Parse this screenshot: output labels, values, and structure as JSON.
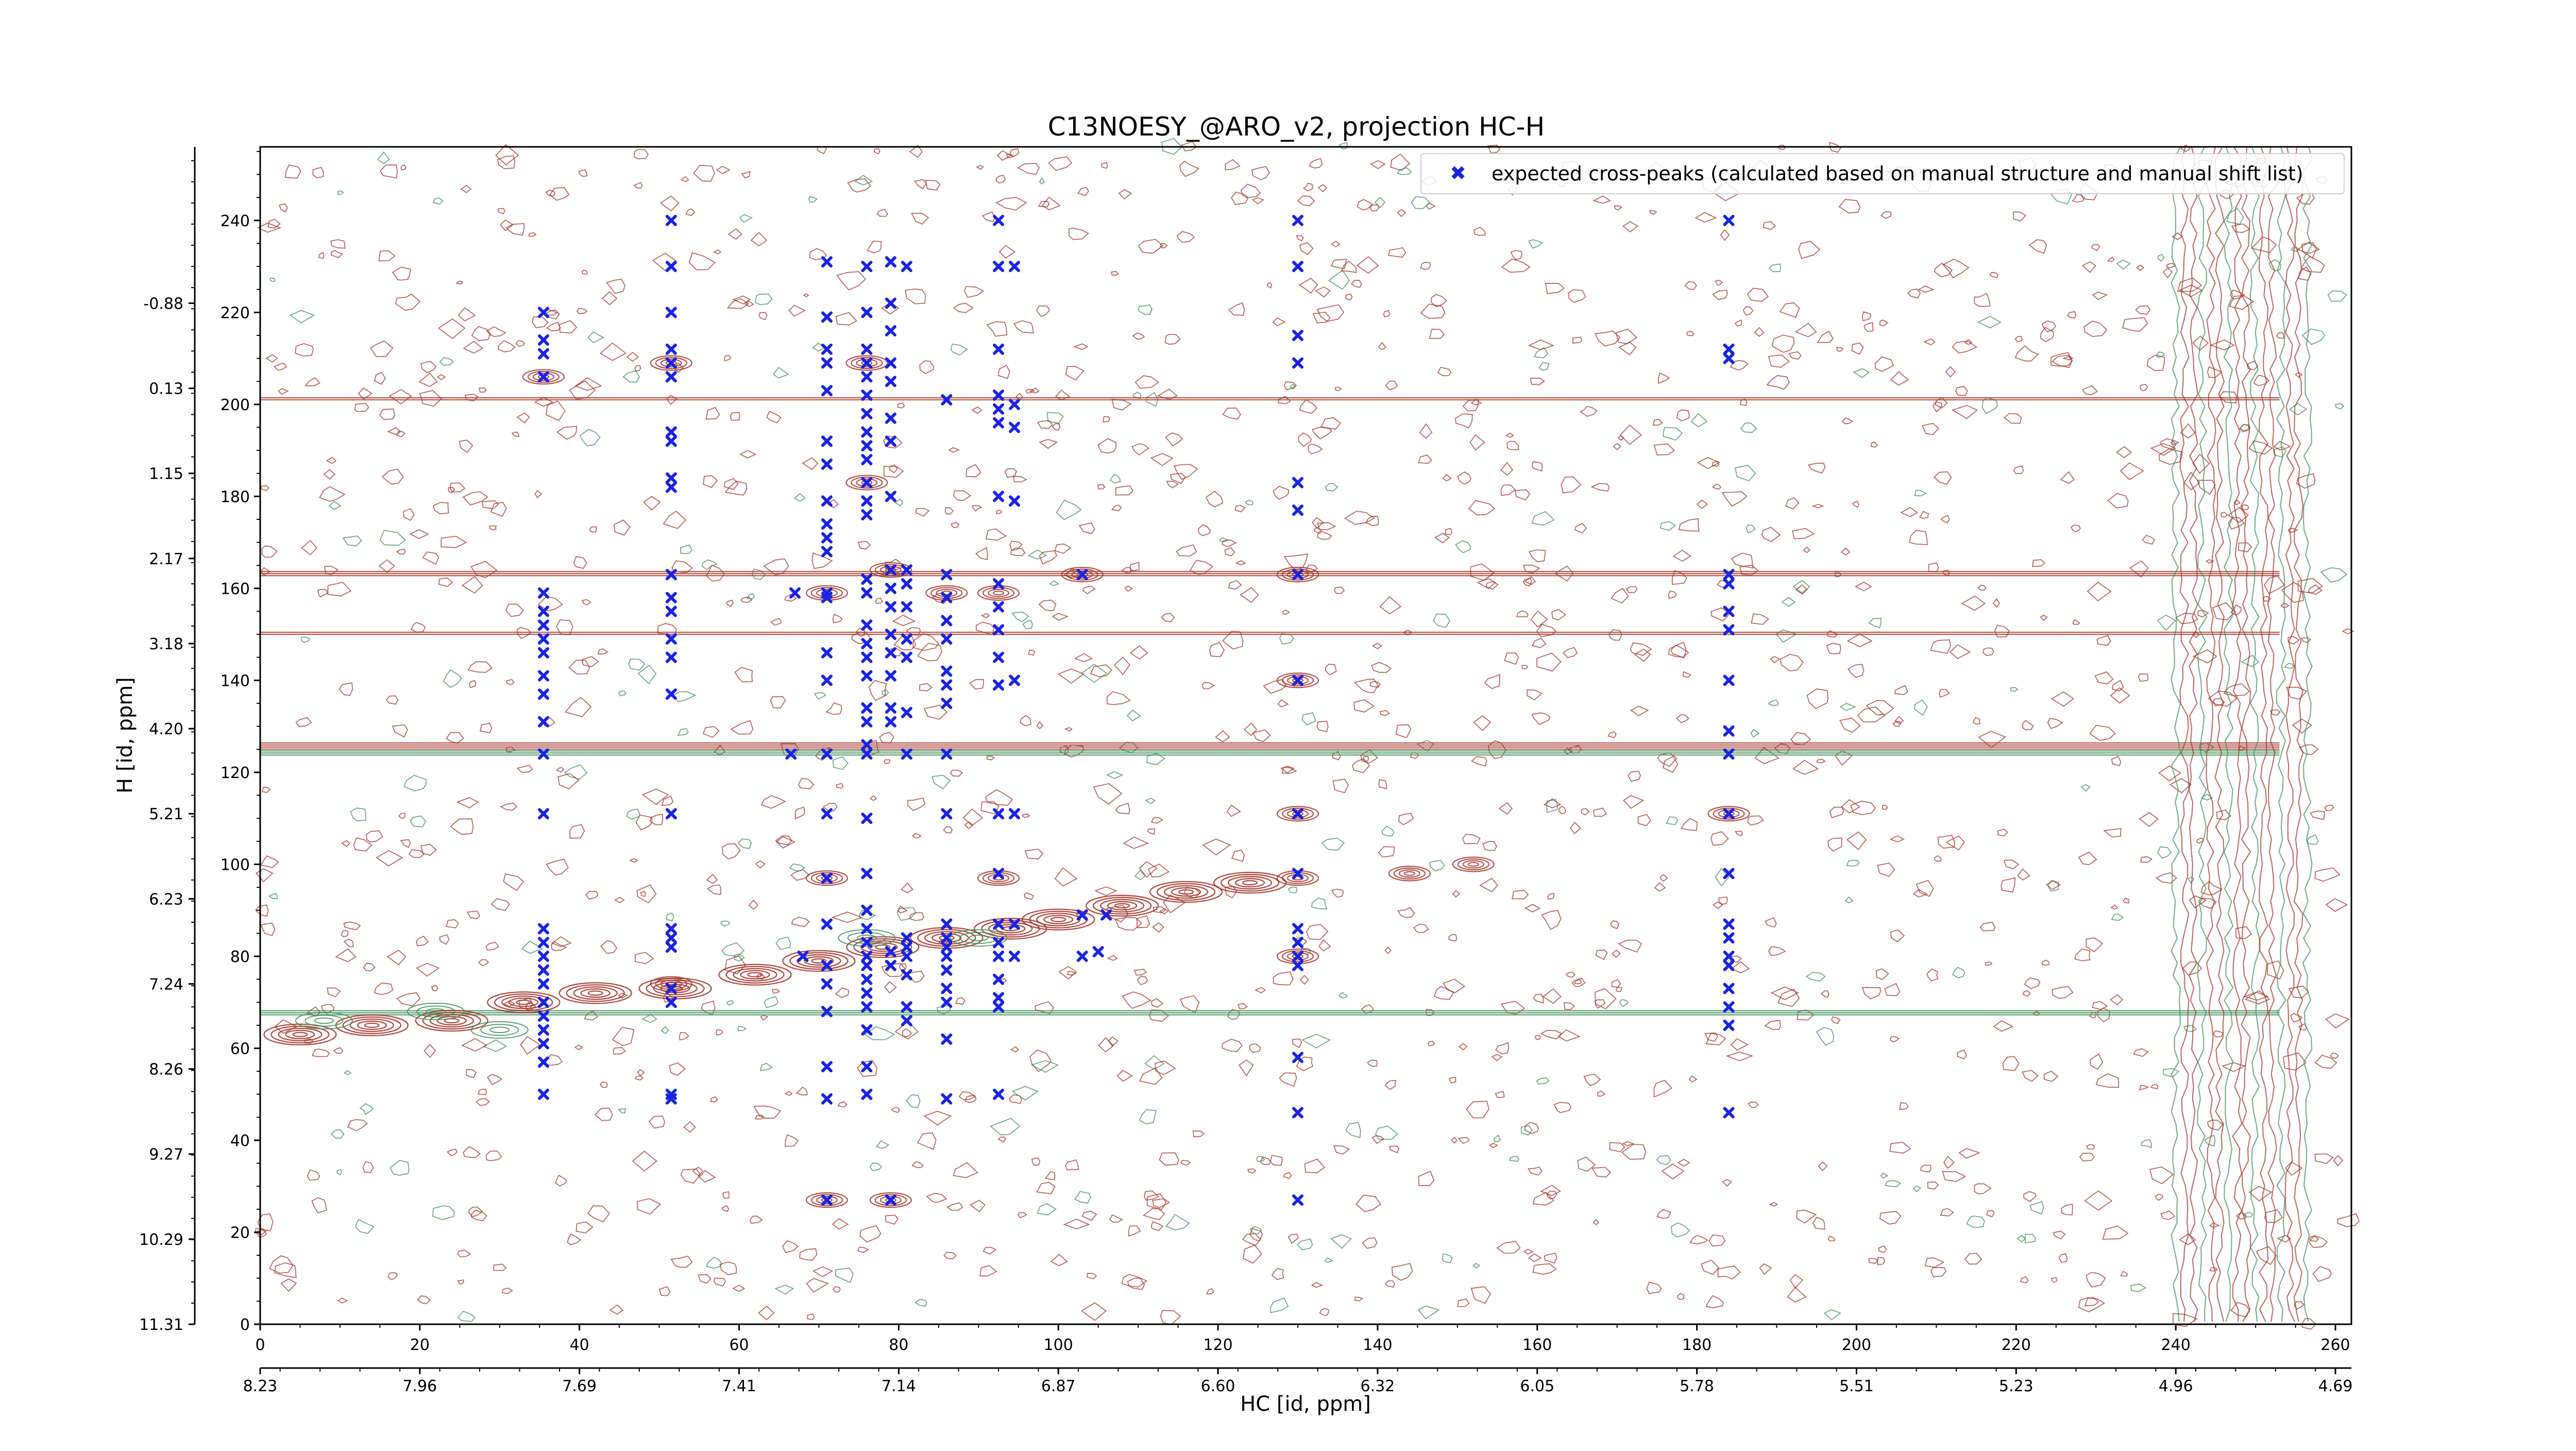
{
  "chart_data": {
    "type": "scatter",
    "title": "C13NOESY_@ARO_v2, projection HC-H",
    "xlabel": "HC [id, ppm]",
    "ylabel": "H [id, ppm]",
    "xlim": [
      0,
      262
    ],
    "ylim": [
      0,
      256
    ],
    "grid": false,
    "legend_position": "top-right",
    "x_ticks": [
      0,
      20,
      40,
      60,
      80,
      100,
      120,
      140,
      160,
      180,
      200,
      220,
      240,
      260
    ],
    "y_ticks": [
      0,
      20,
      40,
      60,
      80,
      100,
      120,
      140,
      160,
      180,
      200,
      220,
      240
    ],
    "x_ppm_ticks": [
      {
        "pos": 0,
        "label": "8.23"
      },
      {
        "pos": 20,
        "label": "7.96"
      },
      {
        "pos": 40,
        "label": "7.69"
      },
      {
        "pos": 60,
        "label": "7.41"
      },
      {
        "pos": 80,
        "label": "7.14"
      },
      {
        "pos": 100,
        "label": "6.87"
      },
      {
        "pos": 120,
        "label": "6.60"
      },
      {
        "pos": 140,
        "label": "6.32"
      },
      {
        "pos": 160,
        "label": "6.05"
      },
      {
        "pos": 180,
        "label": "5.78"
      },
      {
        "pos": 200,
        "label": "5.51"
      },
      {
        "pos": 220,
        "label": "5.23"
      },
      {
        "pos": 240,
        "label": "4.96"
      },
      {
        "pos": 260,
        "label": "4.69"
      }
    ],
    "y_ppm_ticks": [
      {
        "pos": 0,
        "label": "11.31"
      },
      {
        "pos": 18.5,
        "label": "10.29"
      },
      {
        "pos": 37,
        "label": "9.27"
      },
      {
        "pos": 55.5,
        "label": "8.26"
      },
      {
        "pos": 74,
        "label": "7.24"
      },
      {
        "pos": 92.5,
        "label": "6.23"
      },
      {
        "pos": 111,
        "label": "5.21"
      },
      {
        "pos": 129.5,
        "label": "4.20"
      },
      {
        "pos": 148,
        "label": "3.18"
      },
      {
        "pos": 166.5,
        "label": "2.17"
      },
      {
        "pos": 185,
        "label": "1.15"
      },
      {
        "pos": 203.5,
        "label": "0.13"
      },
      {
        "pos": 222,
        "label": "-0.88"
      }
    ],
    "colors": {
      "positive": "#a0352a",
      "negative": "#3f8f58",
      "peaks": "#1a24e0"
    },
    "series": [
      {
        "name": "expected cross-peaks (calculated based on manual structure and manual shift list)",
        "points": [
          [
            35.5,
            220
          ],
          [
            35.5,
            214
          ],
          [
            35.5,
            211
          ],
          [
            35.5,
            206
          ],
          [
            35.5,
            159
          ],
          [
            35.5,
            155
          ],
          [
            35.5,
            152
          ],
          [
            35.5,
            149
          ],
          [
            35.5,
            146
          ],
          [
            35.5,
            141
          ],
          [
            35.5,
            137
          ],
          [
            35.5,
            131
          ],
          [
            35.5,
            124
          ],
          [
            35.5,
            111
          ],
          [
            35.5,
            86
          ],
          [
            35.5,
            83
          ],
          [
            35.5,
            80
          ],
          [
            35.5,
            77
          ],
          [
            35.5,
            74
          ],
          [
            35.5,
            70
          ],
          [
            35.5,
            67
          ],
          [
            35.5,
            64
          ],
          [
            35.5,
            61
          ],
          [
            35.5,
            57
          ],
          [
            35.5,
            50
          ],
          [
            51.5,
            240
          ],
          [
            51.5,
            230
          ],
          [
            51.5,
            220
          ],
          [
            51.5,
            212
          ],
          [
            51.5,
            209
          ],
          [
            51.5,
            206
          ],
          [
            51.5,
            194
          ],
          [
            51.5,
            192
          ],
          [
            51.5,
            184
          ],
          [
            51.5,
            182
          ],
          [
            51.5,
            163
          ],
          [
            51.5,
            158
          ],
          [
            51.5,
            155
          ],
          [
            51.5,
            149
          ],
          [
            51.5,
            145
          ],
          [
            51.5,
            137
          ],
          [
            51.5,
            111
          ],
          [
            51.5,
            86
          ],
          [
            51.5,
            84
          ],
          [
            51.5,
            82
          ],
          [
            51.5,
            73
          ],
          [
            51.5,
            70
          ],
          [
            51.5,
            50
          ],
          [
            51.5,
            49
          ],
          [
            71,
            231
          ],
          [
            71,
            219
          ],
          [
            71,
            212
          ],
          [
            71,
            209
          ],
          [
            71,
            203
          ],
          [
            71,
            192
          ],
          [
            71,
            187
          ],
          [
            71,
            179
          ],
          [
            71,
            174
          ],
          [
            71,
            171
          ],
          [
            71,
            168
          ],
          [
            71,
            159
          ],
          [
            71,
            158
          ],
          [
            71,
            146
          ],
          [
            71,
            140
          ],
          [
            71,
            124
          ],
          [
            71,
            111
          ],
          [
            71,
            97
          ],
          [
            71,
            87
          ],
          [
            71,
            78
          ],
          [
            71,
            74
          ],
          [
            71,
            68
          ],
          [
            71,
            56
          ],
          [
            71,
            49
          ],
          [
            71,
            27
          ],
          [
            67,
            159
          ],
          [
            66.5,
            124
          ],
          [
            68,
            80
          ],
          [
            76,
            230
          ],
          [
            76,
            220
          ],
          [
            76,
            212
          ],
          [
            76,
            209
          ],
          [
            76,
            206
          ],
          [
            76,
            202
          ],
          [
            76,
            198
          ],
          [
            76,
            194
          ],
          [
            76,
            191
          ],
          [
            76,
            188
          ],
          [
            76,
            183
          ],
          [
            76,
            179
          ],
          [
            76,
            176
          ],
          [
            76,
            162
          ],
          [
            76,
            159
          ],
          [
            76,
            152
          ],
          [
            76,
            148
          ],
          [
            76,
            145
          ],
          [
            76,
            141
          ],
          [
            76,
            134
          ],
          [
            76,
            131
          ],
          [
            76,
            126
          ],
          [
            76,
            124
          ],
          [
            76,
            110
          ],
          [
            76,
            98
          ],
          [
            76,
            90
          ],
          [
            76,
            86
          ],
          [
            76,
            83
          ],
          [
            76,
            80
          ],
          [
            76,
            78
          ],
          [
            76,
            75
          ],
          [
            76,
            72
          ],
          [
            76,
            69
          ],
          [
            76,
            64
          ],
          [
            76,
            56
          ],
          [
            76,
            50
          ],
          [
            79,
            231
          ],
          [
            79,
            222
          ],
          [
            79,
            216
          ],
          [
            79,
            209
          ],
          [
            79,
            205
          ],
          [
            79,
            197
          ],
          [
            79,
            192
          ],
          [
            79,
            180
          ],
          [
            79,
            164
          ],
          [
            79,
            160
          ],
          [
            79,
            156
          ],
          [
            79,
            150
          ],
          [
            79,
            146
          ],
          [
            79,
            141
          ],
          [
            79,
            134
          ],
          [
            79,
            131
          ],
          [
            79,
            81
          ],
          [
            79,
            78
          ],
          [
            79,
            27
          ],
          [
            81,
            230
          ],
          [
            81,
            164
          ],
          [
            81,
            161
          ],
          [
            81,
            156
          ],
          [
            81,
            149
          ],
          [
            81,
            145
          ],
          [
            81,
            133
          ],
          [
            81,
            124
          ],
          [
            81,
            84
          ],
          [
            81,
            82
          ],
          [
            81,
            80
          ],
          [
            81,
            76
          ],
          [
            81,
            69
          ],
          [
            81,
            66
          ],
          [
            86,
            201
          ],
          [
            86,
            163
          ],
          [
            86,
            158
          ],
          [
            86,
            153
          ],
          [
            86,
            149
          ],
          [
            86,
            142
          ],
          [
            86,
            139
          ],
          [
            86,
            135
          ],
          [
            86,
            124
          ],
          [
            86,
            111
          ],
          [
            86,
            87
          ],
          [
            86,
            84
          ],
          [
            86,
            82
          ],
          [
            86,
            80
          ],
          [
            86,
            77
          ],
          [
            86,
            73
          ],
          [
            86,
            70
          ],
          [
            86,
            62
          ],
          [
            86,
            49
          ],
          [
            92.5,
            240
          ],
          [
            92.5,
            230
          ],
          [
            92.5,
            212
          ],
          [
            92.5,
            202
          ],
          [
            92.5,
            199
          ],
          [
            92.5,
            196
          ],
          [
            92.5,
            180
          ],
          [
            92.5,
            161
          ],
          [
            92.5,
            156
          ],
          [
            92.5,
            151
          ],
          [
            92.5,
            145
          ],
          [
            92.5,
            139
          ],
          [
            92.5,
            111
          ],
          [
            92.5,
            98
          ],
          [
            92.5,
            87
          ],
          [
            92.5,
            83
          ],
          [
            92.5,
            80
          ],
          [
            92.5,
            75
          ],
          [
            92.5,
            71
          ],
          [
            92.5,
            69
          ],
          [
            92.5,
            50
          ],
          [
            94.5,
            230
          ],
          [
            94.5,
            200
          ],
          [
            94.5,
            195
          ],
          [
            94.5,
            179
          ],
          [
            94.5,
            140
          ],
          [
            94.5,
            111
          ],
          [
            94.5,
            87
          ],
          [
            94.5,
            80
          ],
          [
            103,
            163
          ],
          [
            103,
            89
          ],
          [
            103,
            80
          ],
          [
            106,
            89
          ],
          [
            105,
            81
          ],
          [
            130,
            240
          ],
          [
            130,
            230
          ],
          [
            130,
            215
          ],
          [
            130,
            209
          ],
          [
            130,
            183
          ],
          [
            130,
            177
          ],
          [
            130,
            163
          ],
          [
            130,
            140
          ],
          [
            130,
            111
          ],
          [
            130,
            98
          ],
          [
            130,
            86
          ],
          [
            130,
            83
          ],
          [
            130,
            80
          ],
          [
            130,
            78
          ],
          [
            130,
            58
          ],
          [
            130,
            46
          ],
          [
            130,
            27
          ],
          [
            184,
            240
          ],
          [
            184,
            212
          ],
          [
            184,
            210
          ],
          [
            184,
            163
          ],
          [
            184,
            161
          ],
          [
            184,
            155
          ],
          [
            184,
            151
          ],
          [
            184,
            140
          ],
          [
            184,
            129
          ],
          [
            184,
            124
          ],
          [
            184,
            111
          ],
          [
            184,
            98
          ],
          [
            184,
            87
          ],
          [
            184,
            84
          ],
          [
            184,
            80
          ],
          [
            184,
            78
          ],
          [
            184,
            73
          ],
          [
            184,
            69
          ],
          [
            184,
            65
          ],
          [
            184,
            46
          ]
        ]
      }
    ]
  }
}
